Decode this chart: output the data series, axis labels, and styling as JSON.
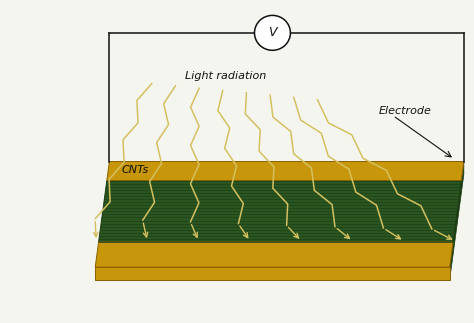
{
  "background_color": "#f5f5f0",
  "substrate_color": "#2a5520",
  "electrode_color": "#c8960a",
  "electrode_dark": "#8a6000",
  "substrate_dark": "#1a3a10",
  "wire_color": "#111111",
  "light_arrow_color": "#d4c060",
  "cnt_line_color": "#1e4018",
  "label_light": "Light radiation",
  "label_electrode": "Electrode",
  "label_cnts": "CNTs",
  "voltmeter_symbol": "V",
  "fig_width": 4.74,
  "fig_height": 3.23,
  "dpi": 100
}
